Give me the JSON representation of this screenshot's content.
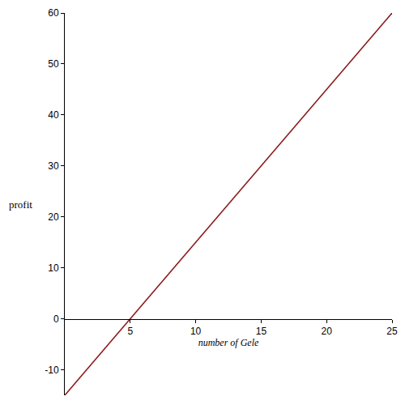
{
  "chart_data": {
    "type": "line",
    "x": [
      0,
      25
    ],
    "values": [
      -15,
      60
    ],
    "color": "#8b1a1a",
    "xlabel": "number of Gele",
    "ylabel": "profit",
    "xlim": [
      0,
      25
    ],
    "ylim": [
      -15,
      60
    ],
    "xticks": [
      5,
      10,
      15,
      20,
      25
    ],
    "yticks": [
      -10,
      0,
      10,
      20,
      30,
      40,
      50,
      60
    ],
    "grid": false
  }
}
